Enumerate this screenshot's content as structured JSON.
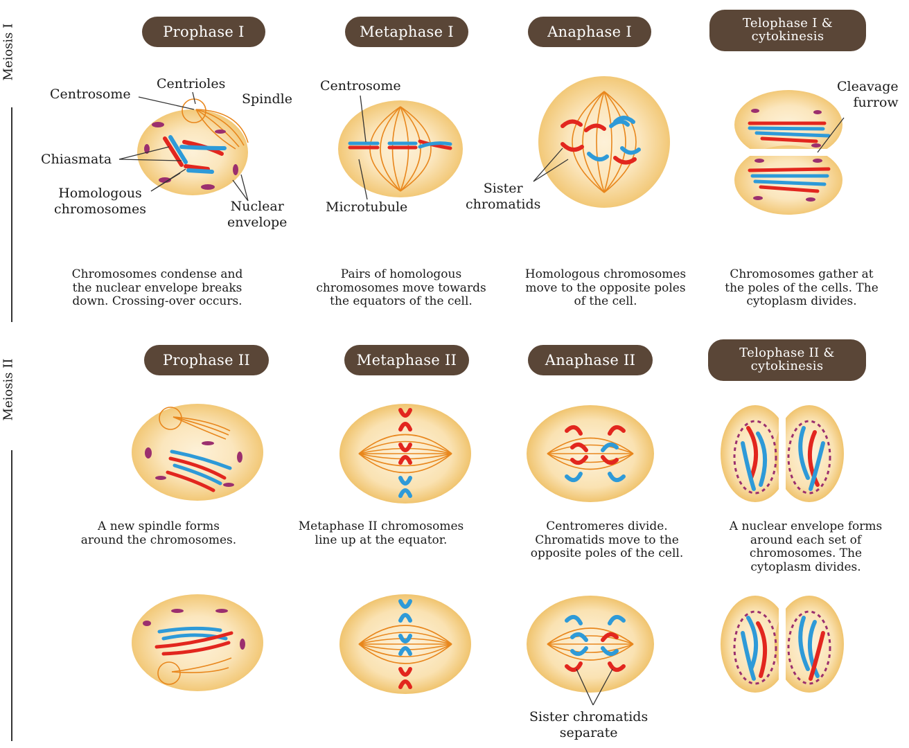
{
  "rows": {
    "meiosis1": "Meiosis I",
    "meiosis2": "Meiosis II"
  },
  "stages": {
    "prophase1": "Prophase I",
    "metaphase1": "Metaphase I",
    "anaphase1": "Anaphase I",
    "telophase1": "Telophase I &\ncytokinesis",
    "prophase2": "Prophase II",
    "metaphase2": "Metaphase II",
    "anaphase2": "Anaphase II",
    "telophase2": "Telophase II &\ncytokinesis"
  },
  "labels": {
    "centrosome_p1": "Centrosome",
    "centrioles": "Centrioles",
    "spindle": "Spindle",
    "chiasmata": "Chiasmata",
    "homologous": "Homologous\nchromosomes",
    "nuclear_envelope": "Nuclear\nenvelope",
    "centrosome_m1": "Centrosome",
    "microtubule": "Microtubule",
    "sister_chromatids": "Sister\nchromatids",
    "cleavage_furrow": "Cleavage\nfurrow",
    "sister_separate": "Sister chromatids\nseparate"
  },
  "captions": {
    "prophase1": "Chromosomes condense and\nthe nuclear envelope breaks\ndown. Crossing-over occurs.",
    "metaphase1": "Pairs of homologous\nchromosomes move towards\nthe equators of the cell.",
    "anaphase1": "Homologous chromosomes\nmove to the opposite poles\nof the cell.",
    "telophase1": "Chromosomes gather at\nthe poles of the cells. The\ncytoplasm divides.",
    "prophase2": "A new spindle forms\naround the chromosomes.",
    "metaphase2": "Metaphase II chromosomes\nline up at the equator.",
    "anaphase2": "Centromeres divide.\nChromatids move to the\nopposite poles of the cell.",
    "telophase2": "A nuclear envelope forms\naround each set of\nchromosomes. The\ncytoplasm divides."
  },
  "colors": {
    "pill": "#5a4637",
    "cell_outer": "#f4d08a",
    "cell_inner": "#fbe9c6",
    "spindle": "#e8861c",
    "chrom_red": "#e2261e",
    "chrom_blue": "#2e9ad8",
    "envelope": "#9b2f6e"
  }
}
